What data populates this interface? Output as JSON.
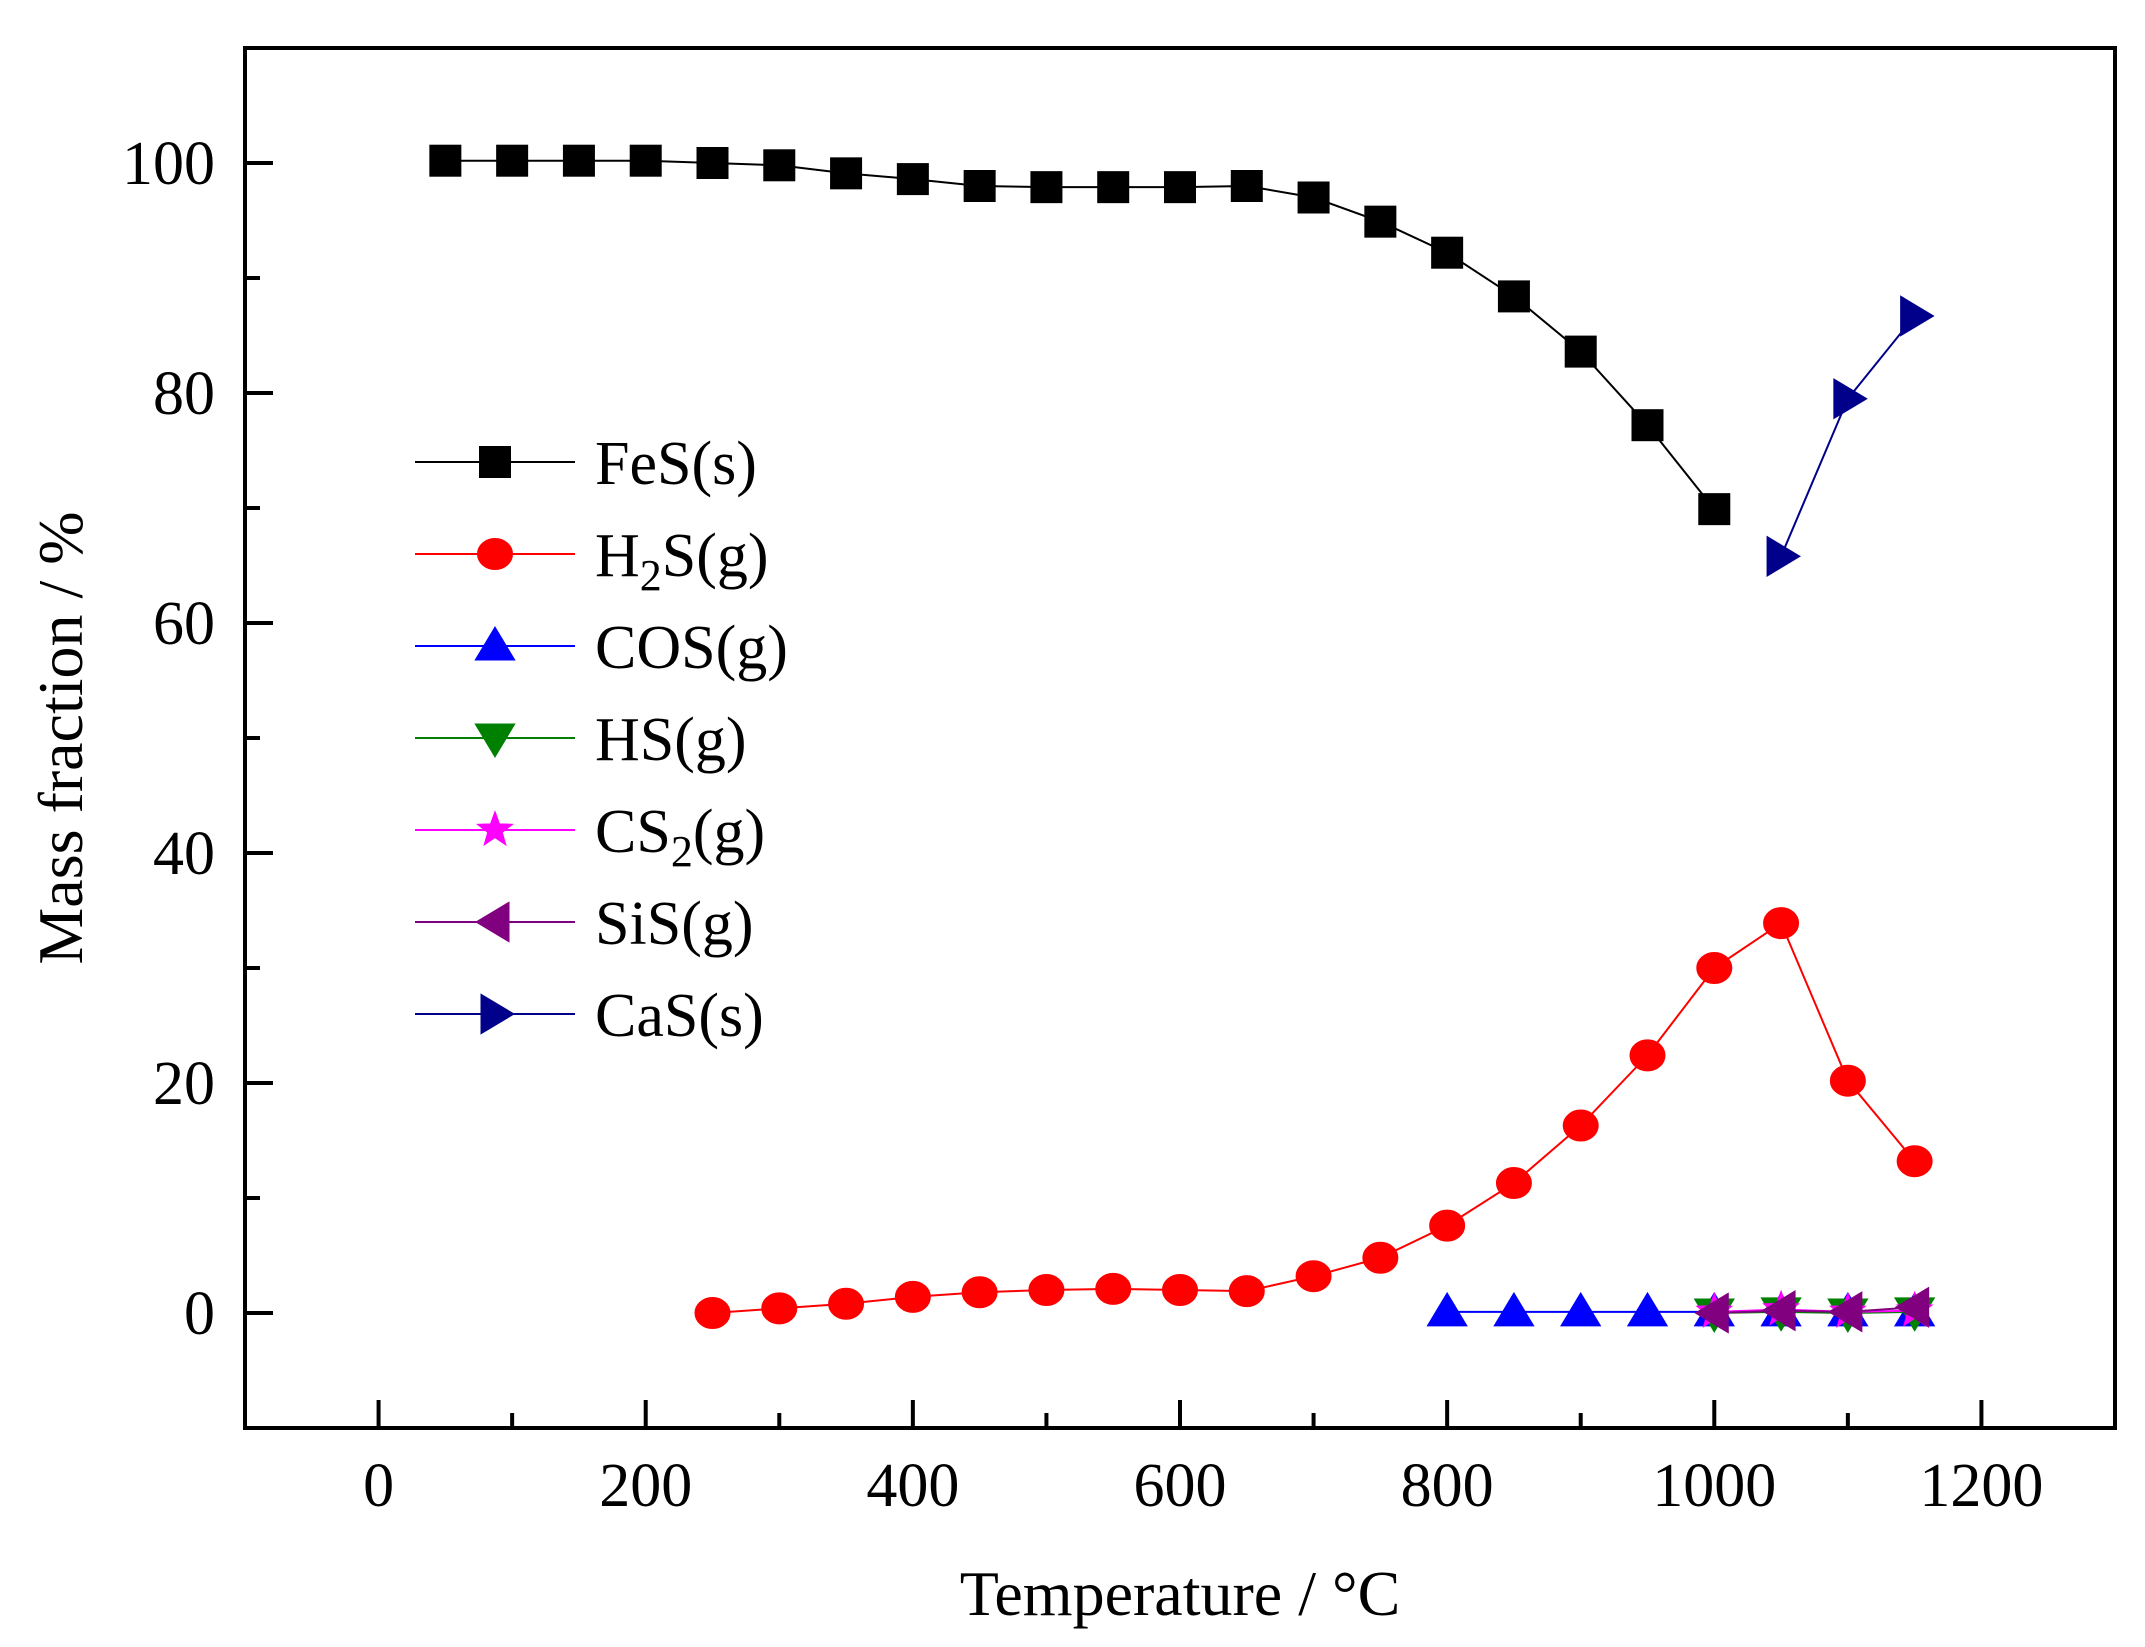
{
  "chart_data": {
    "type": "line",
    "title": "",
    "xlabel": "Temperature / °C",
    "ylabel": "Mass fraction / %",
    "xlim": [
      -100,
      1300
    ],
    "ylim": [
      -10,
      110
    ],
    "xticks": [
      0,
      200,
      400,
      600,
      800,
      1000,
      1200
    ],
    "yticks": [
      0,
      20,
      40,
      60,
      80,
      100
    ],
    "xtick_labels": [
      "0",
      "200",
      "400",
      "600",
      "800",
      "1000",
      "1200"
    ],
    "ytick_labels": [
      "0",
      "20",
      "40",
      "60",
      "80",
      "100"
    ],
    "legend_position": "left-middle",
    "series": [
      {
        "name": "FeS(s)",
        "label_parts": [
          "FeS(s)"
        ],
        "color": "#000000",
        "marker": "square",
        "x": [
          50,
          100,
          150,
          200,
          250,
          300,
          350,
          400,
          450,
          500,
          550,
          600,
          650,
          700,
          750,
          800,
          850,
          900,
          950,
          1000
        ],
        "y": [
          100.2,
          100.2,
          100.2,
          100.2,
          100.0,
          99.8,
          99.1,
          98.6,
          98.0,
          97.9,
          97.9,
          97.9,
          98.0,
          97.0,
          94.9,
          92.2,
          88.4,
          83.6,
          77.2,
          69.9
        ]
      },
      {
        "name": "H2S(g)",
        "label_parts": [
          "H",
          "2",
          "S(g)"
        ],
        "color": "#ff0000",
        "marker": "circle",
        "x": [
          250,
          300,
          350,
          400,
          450,
          500,
          550,
          600,
          650,
          700,
          750,
          800,
          850,
          900,
          950,
          1000,
          1050,
          1100,
          1150
        ],
        "y": [
          0.0,
          0.4,
          0.8,
          1.4,
          1.8,
          2.0,
          2.1,
          2.0,
          1.9,
          3.2,
          4.8,
          7.6,
          11.3,
          16.3,
          22.4,
          30.0,
          33.9,
          20.2,
          13.2
        ]
      },
      {
        "name": "COS(g)",
        "label_parts": [
          "COS(g)"
        ],
        "color": "#0000ff",
        "marker": "triangle-up",
        "x": [
          800,
          850,
          900,
          950,
          1000,
          1050,
          1100,
          1150
        ],
        "y": [
          0.1,
          0.1,
          0.1,
          0.1,
          0.1,
          0.1,
          0.1,
          0.1
        ]
      },
      {
        "name": "HS(g)",
        "label_parts": [
          "HS(g)"
        ],
        "color": "#008000",
        "marker": "triangle-down",
        "x": [
          1000,
          1050,
          1100,
          1150
        ],
        "y": [
          0.0,
          0.1,
          0.0,
          0.1
        ]
      },
      {
        "name": "CS2(g)",
        "label_parts": [
          "CS",
          "2",
          "(g)"
        ],
        "color": "#ff00ff",
        "marker": "star",
        "x": [
          1000,
          1050,
          1100,
          1150
        ],
        "y": [
          0.1,
          0.3,
          0.1,
          0.2
        ]
      },
      {
        "name": "SiS(g)",
        "label_parts": [
          "SiS(g)"
        ],
        "color": "#800080",
        "marker": "triangle-left",
        "x": [
          1000,
          1050,
          1100,
          1150
        ],
        "y": [
          0.0,
          0.2,
          0.1,
          0.5
        ]
      },
      {
        "name": "CaS(s)",
        "label_parts": [
          "CaS(s)"
        ],
        "color": "#00008b",
        "marker": "triangle-right",
        "x": [
          1050,
          1100,
          1150
        ],
        "y": [
          65.8,
          79.5,
          86.7
        ]
      }
    ]
  }
}
